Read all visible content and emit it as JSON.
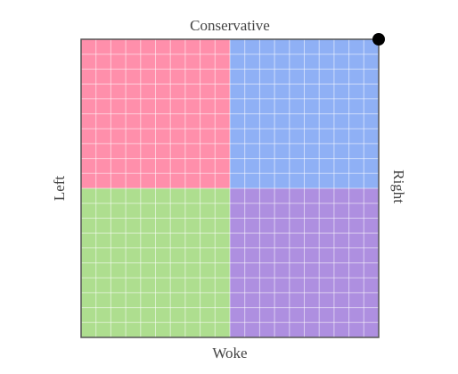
{
  "chart_data": {
    "type": "scatter",
    "top_label": "Conservative",
    "bottom_label": "Woke",
    "left_label": "Left",
    "right_label": "Right",
    "xlim": [
      -10,
      10
    ],
    "ylim": [
      -10,
      10
    ],
    "grid": true,
    "quadrant_colors": [
      "#ff8fab",
      "#8fb0f5",
      "#aede8f",
      "#ae8fe0"
    ],
    "series": [
      {
        "color": "#000000",
        "x": [
          10
        ],
        "values": [
          10
        ]
      }
    ]
  }
}
